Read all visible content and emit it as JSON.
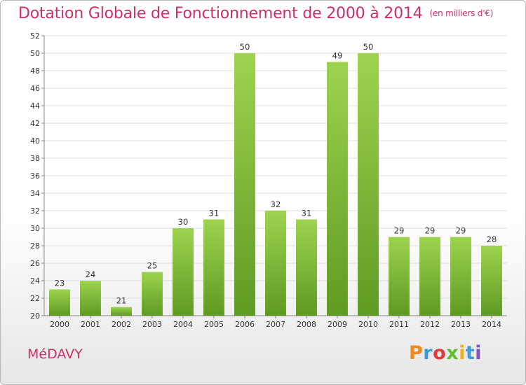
{
  "title": "Dotation Globale de Fonctionnement de 2000 à 2014",
  "subtitle": "(en milliers d'€)",
  "commune": "MéDAVY",
  "logo": {
    "letters": [
      "P",
      "r",
      "o",
      "x",
      "i",
      "t",
      "i"
    ],
    "colors": [
      "#f08a1e",
      "#3d9ad9",
      "#e23b3b",
      "#5fbf2a",
      "#f0b11e",
      "#3d9ad9",
      "#8a4fbf"
    ]
  },
  "colors": {
    "bar": "#7fbd3a",
    "bar_dark": "#5f9a22",
    "bar_light": "#9dd34e",
    "title": "#cc2e6a",
    "grid": "#dddddd"
  },
  "chart_data": {
    "type": "bar",
    "categories": [
      "2000",
      "2001",
      "2002",
      "2003",
      "2004",
      "2005",
      "2006",
      "2007",
      "2008",
      "2009",
      "2010",
      "2011",
      "2012",
      "2013",
      "2014"
    ],
    "values": [
      23,
      24,
      21,
      25,
      30,
      31,
      50,
      32,
      31,
      49,
      50,
      29,
      29,
      29,
      28
    ],
    "ylim": [
      20,
      52
    ],
    "yticks": [
      20,
      22,
      24,
      26,
      28,
      30,
      32,
      34,
      36,
      38,
      40,
      42,
      44,
      46,
      48,
      50,
      52
    ],
    "grid": true,
    "xlabel": "",
    "ylabel": ""
  }
}
